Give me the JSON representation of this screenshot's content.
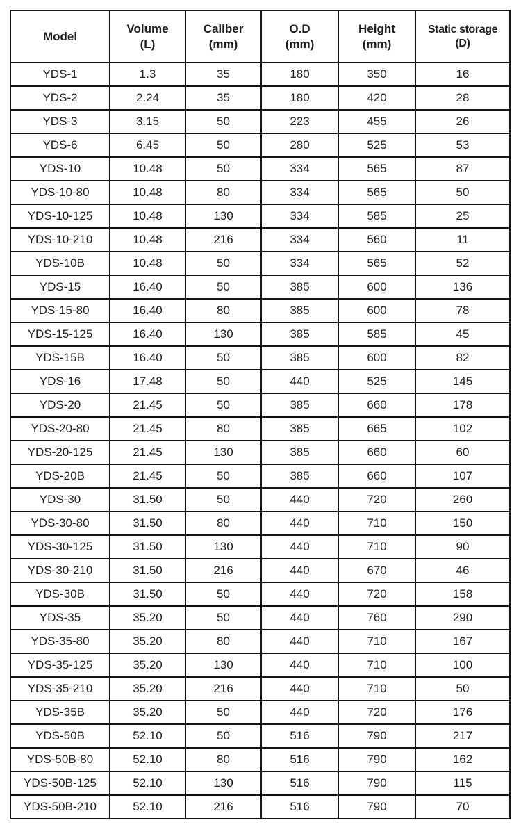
{
  "colors": {
    "background": "#ffffff",
    "border": "#161616",
    "text": "#1f1f1f"
  },
  "table": {
    "column_keys": [
      "model",
      "volume",
      "caliber",
      "od",
      "height",
      "static_storage"
    ],
    "columns": [
      {
        "label": "Model",
        "unit": ""
      },
      {
        "label": "Volume",
        "unit": "(L)"
      },
      {
        "label": "Caliber",
        "unit": "(mm)"
      },
      {
        "label": "O.D",
        "unit": "(mm)"
      },
      {
        "label": "Height",
        "unit": "(mm)"
      },
      {
        "label": "Static storage",
        "unit": "(D)"
      }
    ],
    "rows": [
      [
        "YDS-1",
        "1.3",
        "35",
        "180",
        "350",
        "16"
      ],
      [
        "YDS-2",
        "2.24",
        "35",
        "180",
        "420",
        "28"
      ],
      [
        "YDS-3",
        "3.15",
        "50",
        "223",
        "455",
        "26"
      ],
      [
        "YDS-6",
        "6.45",
        "50",
        "280",
        "525",
        "53"
      ],
      [
        "YDS-10",
        "10.48",
        "50",
        "334",
        "565",
        "87"
      ],
      [
        "YDS-10-80",
        "10.48",
        "80",
        "334",
        "565",
        "50"
      ],
      [
        "YDS-10-125",
        "10.48",
        "130",
        "334",
        "585",
        "25"
      ],
      [
        "YDS-10-210",
        "10.48",
        "216",
        "334",
        "560",
        "11"
      ],
      [
        "YDS-10B",
        "10.48",
        "50",
        "334",
        "565",
        "52"
      ],
      [
        "YDS-15",
        "16.40",
        "50",
        "385",
        "600",
        "136"
      ],
      [
        "YDS-15-80",
        "16.40",
        "80",
        "385",
        "600",
        "78"
      ],
      [
        "YDS-15-125",
        "16.40",
        "130",
        "385",
        "585",
        "45"
      ],
      [
        "YDS-15B",
        "16.40",
        "50",
        "385",
        "600",
        "82"
      ],
      [
        "YDS-16",
        "17.48",
        "50",
        "440",
        "525",
        "145"
      ],
      [
        "YDS-20",
        "21.45",
        "50",
        "385",
        "660",
        "178"
      ],
      [
        "YDS-20-80",
        "21.45",
        "80",
        "385",
        "665",
        "102"
      ],
      [
        "YDS-20-125",
        "21.45",
        "130",
        "385",
        "660",
        "60"
      ],
      [
        "YDS-20B",
        "21.45",
        "50",
        "385",
        "660",
        "107"
      ],
      [
        "YDS-30",
        "31.50",
        "50",
        "440",
        "720",
        "260"
      ],
      [
        "YDS-30-80",
        "31.50",
        "80",
        "440",
        "710",
        "150"
      ],
      [
        "YDS-30-125",
        "31.50",
        "130",
        "440",
        "710",
        "90"
      ],
      [
        "YDS-30-210",
        "31.50",
        "216",
        "440",
        "670",
        "46"
      ],
      [
        "YDS-30B",
        "31.50",
        "50",
        "440",
        "720",
        "158"
      ],
      [
        "YDS-35",
        "35.20",
        "50",
        "440",
        "760",
        "290"
      ],
      [
        "YDS-35-80",
        "35.20",
        "80",
        "440",
        "710",
        "167"
      ],
      [
        "YDS-35-125",
        "35.20",
        "130",
        "440",
        "710",
        "100"
      ],
      [
        "YDS-35-210",
        "35.20",
        "216",
        "440",
        "710",
        "50"
      ],
      [
        "YDS-35B",
        "35.20",
        "50",
        "440",
        "720",
        "176"
      ],
      [
        "YDS-50B",
        "52.10",
        "50",
        "516",
        "790",
        "217"
      ],
      [
        "YDS-50B-80",
        "52.10",
        "80",
        "516",
        "790",
        "162"
      ],
      [
        "YDS-50B-125",
        "52.10",
        "130",
        "516",
        "790",
        "115"
      ],
      [
        "YDS-50B-210",
        "52.10",
        "216",
        "516",
        "790",
        "70"
      ]
    ]
  }
}
